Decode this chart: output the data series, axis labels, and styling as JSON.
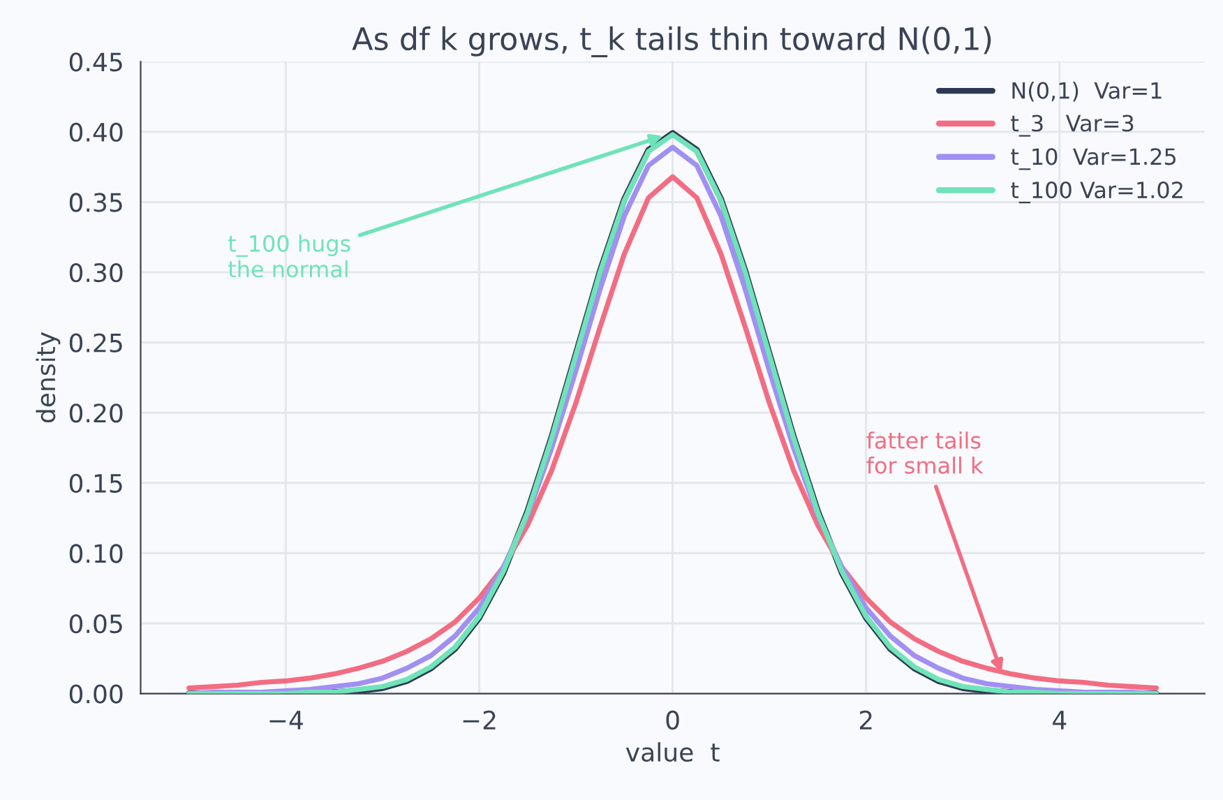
{
  "chart_data": {
    "type": "line",
    "title": "As df k grows, t_k tails thin toward N(0,1)",
    "xlabel": "value  t",
    "ylabel": "density",
    "x": [
      -5,
      -4.75,
      -4.5,
      -4.25,
      -4,
      -3.75,
      -3.5,
      -3.25,
      -3,
      -2.75,
      -2.5,
      -2.25,
      -2,
      -1.75,
      -1.5,
      -1.25,
      -1,
      -0.75,
      -0.5,
      -0.25,
      0,
      0.25,
      0.5,
      0.75,
      1,
      1.25,
      1.5,
      1.75,
      2,
      2.25,
      2.5,
      2.75,
      3,
      3.25,
      3.5,
      3.75,
      4,
      4.25,
      4.5,
      4.75,
      5
    ],
    "series": [
      {
        "name": "N(0,1)  Var=1",
        "color": "#2d3a52",
        "values": [
          0,
          0,
          0,
          0,
          0,
          0,
          0.001,
          0.002,
          0.004,
          0.009,
          0.018,
          0.032,
          0.054,
          0.086,
          0.13,
          0.183,
          0.242,
          0.301,
          0.352,
          0.387,
          0.399,
          0.387,
          0.352,
          0.301,
          0.242,
          0.183,
          0.13,
          0.086,
          0.054,
          0.032,
          0.018,
          0.009,
          0.004,
          0.002,
          0.001,
          0,
          0,
          0,
          0,
          0,
          0
        ]
      },
      {
        "name": "t_3   Var=3",
        "color": "#f26d82",
        "values": [
          0.004,
          0.005,
          0.006,
          0.008,
          0.009,
          0.011,
          0.014,
          0.018,
          0.023,
          0.03,
          0.039,
          0.051,
          0.068,
          0.09,
          0.12,
          0.159,
          0.207,
          0.261,
          0.313,
          0.353,
          0.368,
          0.353,
          0.313,
          0.261,
          0.207,
          0.159,
          0.12,
          0.09,
          0.068,
          0.051,
          0.039,
          0.03,
          0.023,
          0.018,
          0.014,
          0.011,
          0.009,
          0.008,
          0.006,
          0.005,
          0.004
        ]
      },
      {
        "name": "t_10  Var=1.25",
        "color": "#a190f2",
        "values": [
          0,
          0.001,
          0.001,
          0.001,
          0.002,
          0.003,
          0.005,
          0.007,
          0.011,
          0.018,
          0.027,
          0.041,
          0.061,
          0.09,
          0.127,
          0.175,
          0.23,
          0.288,
          0.34,
          0.376,
          0.389,
          0.376,
          0.34,
          0.288,
          0.23,
          0.175,
          0.127,
          0.09,
          0.061,
          0.041,
          0.027,
          0.018,
          0.011,
          0.007,
          0.005,
          0.003,
          0.002,
          0.001,
          0.001,
          0.001,
          0
        ]
      },
      {
        "name": "t_100 Var=1.02",
        "color": "#6fe3b9",
        "values": [
          0,
          0,
          0,
          0,
          0,
          0.001,
          0.001,
          0.003,
          0.005,
          0.01,
          0.019,
          0.033,
          0.055,
          0.087,
          0.129,
          0.182,
          0.241,
          0.3,
          0.351,
          0.386,
          0.398,
          0.386,
          0.351,
          0.3,
          0.241,
          0.182,
          0.129,
          0.087,
          0.055,
          0.033,
          0.019,
          0.01,
          0.005,
          0.003,
          0.001,
          0.001,
          0,
          0,
          0,
          0,
          0
        ]
      }
    ],
    "annotations": [
      {
        "text": "t_100 hugs\nthe normal",
        "x": -0.1,
        "y": 0.397
      },
      {
        "text": "fatter tails\nfor small k",
        "x": 3.4,
        "y": 0.015
      }
    ],
    "xlim": [
      -5.5,
      5.5
    ],
    "xticks": [
      {
        "value": -4,
        "label": "−4"
      },
      {
        "value": -2,
        "label": "−2"
      },
      0,
      2,
      4
    ],
    "ylim": [
      0,
      0.45
    ],
    "yticks": [
      {
        "value": 0,
        "label": "0.00"
      },
      {
        "value": 0.05,
        "label": "0.05"
      },
      {
        "value": 0.1,
        "label": "0.10"
      },
      {
        "value": 0.15,
        "label": "0.15"
      },
      {
        "value": 0.2,
        "label": "0.20"
      },
      {
        "value": 0.25,
        "label": "0.25"
      },
      {
        "value": 0.3,
        "label": "0.30"
      },
      {
        "value": 0.35,
        "label": "0.35"
      },
      {
        "value": 0.4,
        "label": "0.40"
      },
      {
        "value": 0.45,
        "label": "0.45"
      }
    ],
    "grid": true,
    "legend": "top right",
    "line_style": "solid",
    "marker": "none"
  }
}
